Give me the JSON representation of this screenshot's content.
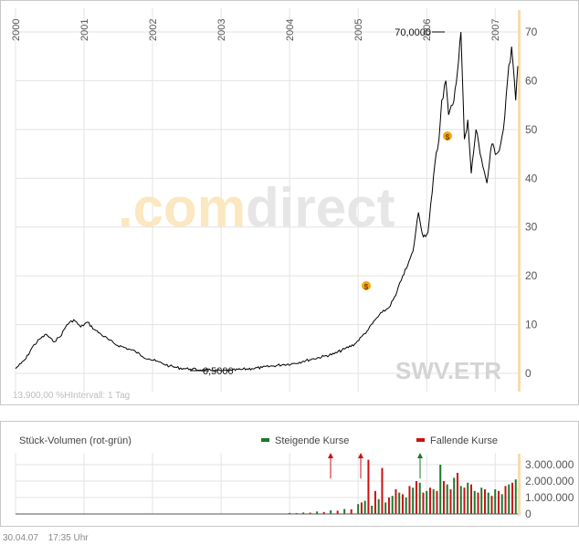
{
  "main_chart": {
    "symbol": "SWV.ETR",
    "info_text": "13.900,00 %HIntervall: 1 Tag",
    "brand": {
      "dot": ".",
      "com": "com",
      "direct": "direct"
    },
    "marker_max": "70,0000",
    "marker_min": "0,5000",
    "dividend_icon": "$",
    "years": [
      "2000",
      "2001",
      "2002",
      "2003",
      "2004",
      "2005",
      "2006",
      "2007"
    ],
    "y_ticks": [
      "0",
      "10",
      "20",
      "30",
      "40",
      "50",
      "60",
      "70"
    ],
    "colors": {
      "line": "#000000",
      "grid": "#e0e0e0",
      "accent": "#f6dcae",
      "dividend": "#f3a712",
      "watermark_orange": "#fbe7c0",
      "watermark_gray": "#e6e6e6"
    }
  },
  "volume_chart": {
    "title": "Stück-Volumen (rot-grün)",
    "legend": [
      {
        "label": "Steigende Kurse",
        "color": "#1a7a2e"
      },
      {
        "label": "Fallende Kurse",
        "color": "#cc1111"
      }
    ],
    "y_ticks": [
      "0",
      "1.000.000",
      "2.000.000",
      "3.000.000"
    ]
  },
  "footer": {
    "date": "30.04.07",
    "time": "17:35 Uhr"
  },
  "chart_data": [
    {
      "type": "line",
      "title": "",
      "xlabel": "",
      "ylabel": "",
      "x_range": [
        2000,
        2007.33
      ],
      "ylim": [
        0,
        70
      ],
      "grid": true,
      "series": [
        {
          "x": [
            2000.0,
            2000.08,
            2000.15,
            2000.25,
            2000.35,
            2000.45,
            2000.55,
            2000.65,
            2000.75,
            2000.85,
            2000.95,
            2001.05,
            2001.15,
            2001.25,
            2001.35,
            2001.45,
            2001.55,
            2001.65,
            2001.75,
            2001.85,
            2001.95,
            2002.05,
            2002.15,
            2002.25,
            2002.35,
            2002.45,
            2002.55,
            2002.7,
            2002.85,
            2003.0,
            2003.15,
            2003.3,
            2003.45,
            2003.6,
            2003.75,
            2003.9,
            2004.05,
            2004.2,
            2004.35,
            2004.5,
            2004.65,
            2004.8,
            2004.95,
            2005.05,
            2005.15,
            2005.25,
            2005.35,
            2005.45,
            2005.55,
            2005.65,
            2005.72,
            2005.8,
            2005.88,
            2005.95,
            2006.02,
            2006.08,
            2006.12,
            2006.18,
            2006.22,
            2006.28,
            2006.32,
            2006.38,
            2006.45,
            2006.5,
            2006.55,
            2006.6,
            2006.65,
            2006.72,
            2006.8,
            2006.88,
            2006.95,
            2007.02,
            2007.08,
            2007.12,
            2007.18,
            2007.24,
            2007.3,
            2007.33
          ],
          "y": [
            1.0,
            2.0,
            3.0,
            5.5,
            7.0,
            8.0,
            6.5,
            7.5,
            10.0,
            11.0,
            9.5,
            10.5,
            9.0,
            8.0,
            7.0,
            6.0,
            5.5,
            5.0,
            4.5,
            3.5,
            3.0,
            2.5,
            2.0,
            1.5,
            1.2,
            1.0,
            0.9,
            0.7,
            0.6,
            0.5,
            0.6,
            0.8,
            1.0,
            1.2,
            1.5,
            1.8,
            2.0,
            2.5,
            3.0,
            3.5,
            4.0,
            5.0,
            6.0,
            7.5,
            9.0,
            11.0,
            12.5,
            13.5,
            16.0,
            20.0,
            22.0,
            25.0,
            33.0,
            28.0,
            29.0,
            37.0,
            43.0,
            48.0,
            56.0,
            60.0,
            53.0,
            55.0,
            62.0,
            70.0,
            48.0,
            52.0,
            41.0,
            50.0,
            44.0,
            39.0,
            47.0,
            45.0,
            47.0,
            50.0,
            60.0,
            67.0,
            56.0,
            63.0
          ]
        }
      ]
    },
    {
      "type": "bar",
      "title": "Stück-Volumen (rot-grün)",
      "x_range": [
        2000,
        2007.33
      ],
      "ylim": [
        0,
        3500000
      ],
      "legend": "top",
      "series": [
        {
          "name": "Steigende Kurse",
          "x": [
            2004.0,
            2004.2,
            2004.4,
            2004.6,
            2004.8,
            2005.0,
            2005.1,
            2005.2,
            2005.3,
            2005.4,
            2005.5,
            2005.6,
            2005.7,
            2005.8,
            2005.9,
            2006.0,
            2006.1,
            2006.2,
            2006.3,
            2006.4,
            2006.5,
            2006.6,
            2006.7,
            2006.8,
            2006.9,
            2007.0,
            2007.1,
            2007.2,
            2007.3
          ],
          "values": [
            60000,
            90000,
            150000,
            220000,
            300000,
            600000,
            800000,
            500000,
            900000,
            700000,
            1100000,
            1300000,
            1000000,
            1600000,
            1900000,
            1400000,
            1500000,
            3000000,
            1800000,
            2200000,
            1700000,
            1900000,
            1400000,
            1600000,
            1300000,
            1500000,
            1200000,
            1800000,
            2100000
          ]
        },
        {
          "name": "Fallende Kurse",
          "x": [
            2004.1,
            2004.3,
            2004.5,
            2004.7,
            2004.9,
            2005.05,
            2005.15,
            2005.25,
            2005.35,
            2005.45,
            2005.55,
            2005.65,
            2005.75,
            2005.85,
            2005.95,
            2006.05,
            2006.15,
            2006.25,
            2006.35,
            2006.45,
            2006.55,
            2006.65,
            2006.75,
            2006.85,
            2006.95,
            2007.05,
            2007.15,
            2007.25
          ],
          "values": [
            50000,
            80000,
            120000,
            200000,
            280000,
            700000,
            3300000,
            1400000,
            2800000,
            1000000,
            1500000,
            1200000,
            1700000,
            2000000,
            1300000,
            1600000,
            1400000,
            2000000,
            1500000,
            2500000,
            1600000,
            1800000,
            1300000,
            1500000,
            1100000,
            1400000,
            1700000,
            1900000
          ]
        }
      ]
    }
  ]
}
